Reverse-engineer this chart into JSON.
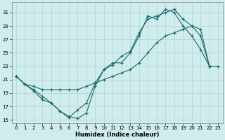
{
  "xlabel": "Humidex (Indice chaleur)",
  "bg_color": "#d0ecec",
  "grid_color": "#b0d4d4",
  "line_color": "#1a6b6b",
  "xlim": [
    -0.5,
    23.5
  ],
  "ylim": [
    14.5,
    32.5
  ],
  "yticks": [
    15,
    17,
    19,
    21,
    23,
    25,
    27,
    29,
    31
  ],
  "xticks": [
    0,
    1,
    2,
    3,
    4,
    5,
    6,
    7,
    8,
    9,
    10,
    11,
    12,
    13,
    14,
    15,
    16,
    17,
    18,
    19,
    20,
    21,
    22,
    23
  ],
  "line1_x": [
    0,
    1,
    2,
    3,
    4,
    5,
    6,
    7,
    8,
    9,
    10,
    11,
    12,
    13,
    14,
    15,
    16,
    17,
    18,
    19,
    20,
    21,
    22
  ],
  "line1_y": [
    21.5,
    20.3,
    19.3,
    18.0,
    17.5,
    16.3,
    15.5,
    15.2,
    16.0,
    20.0,
    22.5,
    23.5,
    23.5,
    25.0,
    27.5,
    30.5,
    30.0,
    31.5,
    31.0,
    29.0,
    27.5,
    25.5,
    23.0
  ],
  "line2_x": [
    0,
    1,
    2,
    3,
    4,
    5,
    6,
    7,
    8,
    9,
    10,
    11,
    12,
    13,
    14,
    15,
    16,
    17,
    18,
    19,
    20,
    21,
    22
  ],
  "line2_y": [
    21.5,
    20.3,
    19.5,
    18.5,
    17.5,
    16.3,
    15.3,
    16.5,
    17.5,
    20.5,
    22.5,
    23.2,
    24.5,
    25.2,
    28.0,
    30.0,
    30.5,
    31.0,
    31.5,
    30.0,
    29.0,
    27.5,
    23.0
  ],
  "line3_x": [
    0,
    1,
    2,
    3,
    4,
    5,
    6,
    7,
    8,
    9,
    10,
    11,
    12,
    13,
    14,
    15,
    16,
    17,
    18,
    19,
    20,
    21,
    22,
    23
  ],
  "line3_y": [
    21.5,
    20.3,
    20.0,
    19.5,
    19.5,
    19.5,
    19.5,
    19.5,
    20.0,
    20.5,
    21.0,
    21.5,
    22.0,
    22.5,
    23.5,
    25.0,
    26.5,
    27.5,
    28.0,
    28.5,
    29.0,
    28.5,
    23.0,
    23.0
  ]
}
